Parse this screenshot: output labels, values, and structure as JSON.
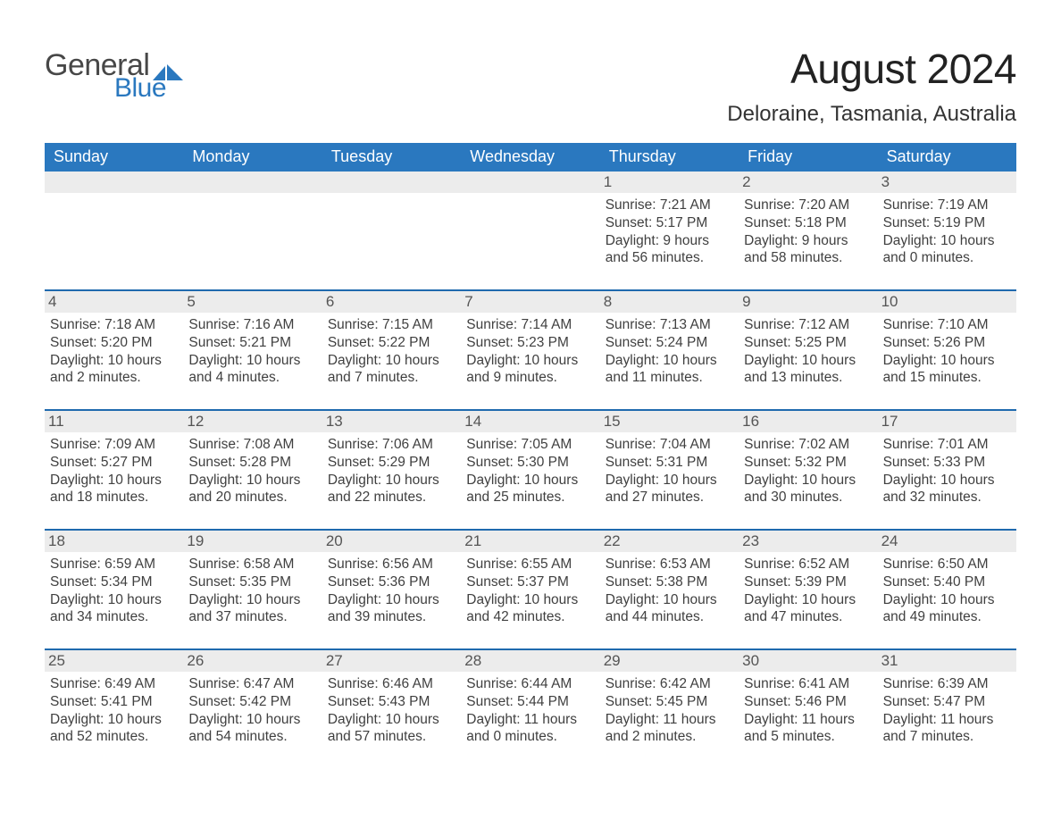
{
  "logo": {
    "word1": "General",
    "word2": "Blue",
    "mark_color": "#2a78bf",
    "text_color": "#474747"
  },
  "header": {
    "month_title": "August 2024",
    "location": "Deloraine, Tasmania, Australia"
  },
  "colors": {
    "header_blue": "#2a78bf",
    "row_gray": "#ececec",
    "rule_blue": "#1f6aae",
    "background": "#ffffff"
  },
  "days_of_week": [
    "Sunday",
    "Monday",
    "Tuesday",
    "Wednesday",
    "Thursday",
    "Friday",
    "Saturday"
  ],
  "weeks": [
    [
      {
        "empty": true
      },
      {
        "empty": true
      },
      {
        "empty": true
      },
      {
        "empty": true
      },
      {
        "num": "1",
        "sunrise": "Sunrise: 7:21 AM",
        "sunset": "Sunset: 5:17 PM",
        "daylight": "Daylight: 9 hours and 56 minutes."
      },
      {
        "num": "2",
        "sunrise": "Sunrise: 7:20 AM",
        "sunset": "Sunset: 5:18 PM",
        "daylight": "Daylight: 9 hours and 58 minutes."
      },
      {
        "num": "3",
        "sunrise": "Sunrise: 7:19 AM",
        "sunset": "Sunset: 5:19 PM",
        "daylight": "Daylight: 10 hours and 0 minutes."
      }
    ],
    [
      {
        "num": "4",
        "sunrise": "Sunrise: 7:18 AM",
        "sunset": "Sunset: 5:20 PM",
        "daylight": "Daylight: 10 hours and 2 minutes."
      },
      {
        "num": "5",
        "sunrise": "Sunrise: 7:16 AM",
        "sunset": "Sunset: 5:21 PM",
        "daylight": "Daylight: 10 hours and 4 minutes."
      },
      {
        "num": "6",
        "sunrise": "Sunrise: 7:15 AM",
        "sunset": "Sunset: 5:22 PM",
        "daylight": "Daylight: 10 hours and 7 minutes."
      },
      {
        "num": "7",
        "sunrise": "Sunrise: 7:14 AM",
        "sunset": "Sunset: 5:23 PM",
        "daylight": "Daylight: 10 hours and 9 minutes."
      },
      {
        "num": "8",
        "sunrise": "Sunrise: 7:13 AM",
        "sunset": "Sunset: 5:24 PM",
        "daylight": "Daylight: 10 hours and 11 minutes."
      },
      {
        "num": "9",
        "sunrise": "Sunrise: 7:12 AM",
        "sunset": "Sunset: 5:25 PM",
        "daylight": "Daylight: 10 hours and 13 minutes."
      },
      {
        "num": "10",
        "sunrise": "Sunrise: 7:10 AM",
        "sunset": "Sunset: 5:26 PM",
        "daylight": "Daylight: 10 hours and 15 minutes."
      }
    ],
    [
      {
        "num": "11",
        "sunrise": "Sunrise: 7:09 AM",
        "sunset": "Sunset: 5:27 PM",
        "daylight": "Daylight: 10 hours and 18 minutes."
      },
      {
        "num": "12",
        "sunrise": "Sunrise: 7:08 AM",
        "sunset": "Sunset: 5:28 PM",
        "daylight": "Daylight: 10 hours and 20 minutes."
      },
      {
        "num": "13",
        "sunrise": "Sunrise: 7:06 AM",
        "sunset": "Sunset: 5:29 PM",
        "daylight": "Daylight: 10 hours and 22 minutes."
      },
      {
        "num": "14",
        "sunrise": "Sunrise: 7:05 AM",
        "sunset": "Sunset: 5:30 PM",
        "daylight": "Daylight: 10 hours and 25 minutes."
      },
      {
        "num": "15",
        "sunrise": "Sunrise: 7:04 AM",
        "sunset": "Sunset: 5:31 PM",
        "daylight": "Daylight: 10 hours and 27 minutes."
      },
      {
        "num": "16",
        "sunrise": "Sunrise: 7:02 AM",
        "sunset": "Sunset: 5:32 PM",
        "daylight": "Daylight: 10 hours and 30 minutes."
      },
      {
        "num": "17",
        "sunrise": "Sunrise: 7:01 AM",
        "sunset": "Sunset: 5:33 PM",
        "daylight": "Daylight: 10 hours and 32 minutes."
      }
    ],
    [
      {
        "num": "18",
        "sunrise": "Sunrise: 6:59 AM",
        "sunset": "Sunset: 5:34 PM",
        "daylight": "Daylight: 10 hours and 34 minutes."
      },
      {
        "num": "19",
        "sunrise": "Sunrise: 6:58 AM",
        "sunset": "Sunset: 5:35 PM",
        "daylight": "Daylight: 10 hours and 37 minutes."
      },
      {
        "num": "20",
        "sunrise": "Sunrise: 6:56 AM",
        "sunset": "Sunset: 5:36 PM",
        "daylight": "Daylight: 10 hours and 39 minutes."
      },
      {
        "num": "21",
        "sunrise": "Sunrise: 6:55 AM",
        "sunset": "Sunset: 5:37 PM",
        "daylight": "Daylight: 10 hours and 42 minutes."
      },
      {
        "num": "22",
        "sunrise": "Sunrise: 6:53 AM",
        "sunset": "Sunset: 5:38 PM",
        "daylight": "Daylight: 10 hours and 44 minutes."
      },
      {
        "num": "23",
        "sunrise": "Sunrise: 6:52 AM",
        "sunset": "Sunset: 5:39 PM",
        "daylight": "Daylight: 10 hours and 47 minutes."
      },
      {
        "num": "24",
        "sunrise": "Sunrise: 6:50 AM",
        "sunset": "Sunset: 5:40 PM",
        "daylight": "Daylight: 10 hours and 49 minutes."
      }
    ],
    [
      {
        "num": "25",
        "sunrise": "Sunrise: 6:49 AM",
        "sunset": "Sunset: 5:41 PM",
        "daylight": "Daylight: 10 hours and 52 minutes."
      },
      {
        "num": "26",
        "sunrise": "Sunrise: 6:47 AM",
        "sunset": "Sunset: 5:42 PM",
        "daylight": "Daylight: 10 hours and 54 minutes."
      },
      {
        "num": "27",
        "sunrise": "Sunrise: 6:46 AM",
        "sunset": "Sunset: 5:43 PM",
        "daylight": "Daylight: 10 hours and 57 minutes."
      },
      {
        "num": "28",
        "sunrise": "Sunrise: 6:44 AM",
        "sunset": "Sunset: 5:44 PM",
        "daylight": "Daylight: 11 hours and 0 minutes."
      },
      {
        "num": "29",
        "sunrise": "Sunrise: 6:42 AM",
        "sunset": "Sunset: 5:45 PM",
        "daylight": "Daylight: 11 hours and 2 minutes."
      },
      {
        "num": "30",
        "sunrise": "Sunrise: 6:41 AM",
        "sunset": "Sunset: 5:46 PM",
        "daylight": "Daylight: 11 hours and 5 minutes."
      },
      {
        "num": "31",
        "sunrise": "Sunrise: 6:39 AM",
        "sunset": "Sunset: 5:47 PM",
        "daylight": "Daylight: 11 hours and 7 minutes."
      }
    ]
  ]
}
